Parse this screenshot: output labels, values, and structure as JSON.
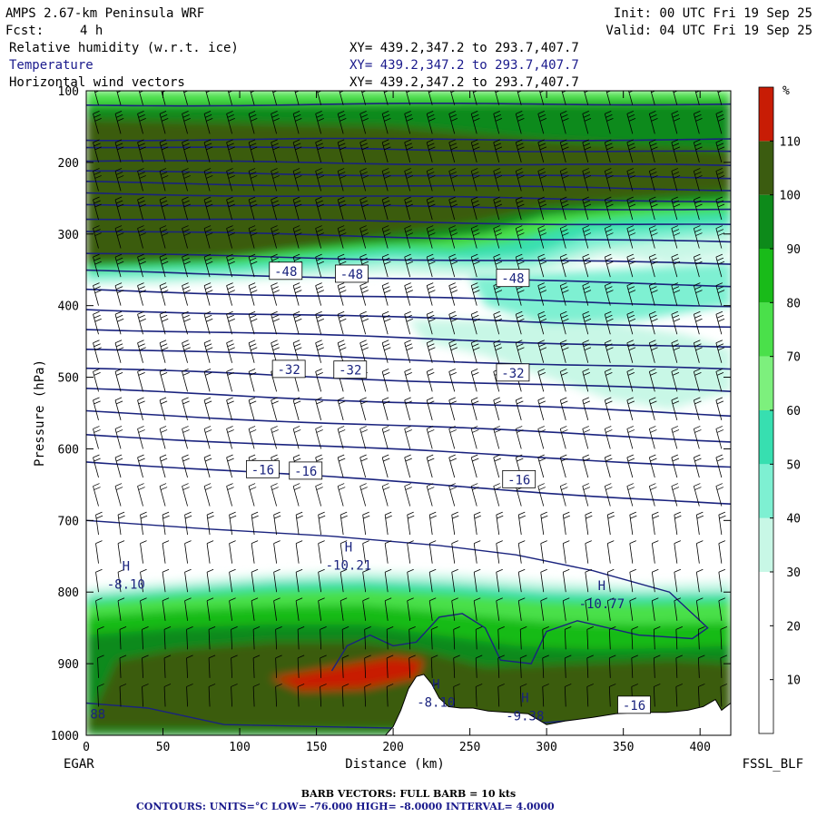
{
  "header": {
    "model": "AMPS 2.67-km Peninsula WRF",
    "init": "Init: 00 UTC Fri 19 Sep 25",
    "fcst_label": "Fcst:",
    "fcst_value": "4 h",
    "valid": "Valid: 04 UTC Fri 19 Sep 25",
    "fields": [
      {
        "name": "Relative humidity (w.r.t. ice)",
        "xy": "XY= 439.2,347.2 to 293.7,407.7"
      },
      {
        "name": "Temperature",
        "xy": "XY= 439.2,347.2 to 293.7,407.7"
      },
      {
        "name": "Horizontal wind vectors",
        "xy": "XY= 439.2,347.2 to 293.7,407.7"
      }
    ]
  },
  "footer": {
    "barb": "BARB VECTORS:  FULL BARB = 10 kts",
    "contours": "CONTOURS:  UNITS=°C  LOW= -76.000       HIGH= -8.0000      INTERVAL=    4.0000"
  },
  "colors": {
    "white": "#ffffff",
    "rh30": "#c8f7e6",
    "rh40": "#7ef0d2",
    "rh50": "#37dfb0",
    "rh60": "#7df07d",
    "rh70": "#4ae04a",
    "rh80": "#19bb19",
    "rh90": "#0d8a1a",
    "rh100": "#3b5c10",
    "rh110": "#c81c05",
    "contour": "#1a237e",
    "terrain": "#ffffff"
  },
  "chart_data": {
    "type": "cross-section",
    "xlabel": "Distance (km)",
    "ylabel": "Pressure (hPa)",
    "xlim": [
      0,
      420
    ],
    "ylim": [
      1000,
      100
    ],
    "xticks": [
      0,
      50,
      100,
      150,
      200,
      250,
      300,
      350,
      400
    ],
    "yticks": [
      100,
      200,
      300,
      400,
      500,
      600,
      700,
      800,
      900,
      1000
    ],
    "left_endpoint": "EGAR",
    "right_endpoint": "FSSL_BLF",
    "colorbar": {
      "unit": "%",
      "ticks": [
        10,
        20,
        30,
        40,
        50,
        60,
        70,
        80,
        90,
        100,
        110
      ],
      "levels": [
        0,
        10,
        20,
        30,
        40,
        50,
        60,
        70,
        80,
        90,
        100,
        110,
        120
      ],
      "colors": [
        "#ffffff",
        "#ffffff",
        "#ffffff",
        "#c8f7e6",
        "#7ef0d2",
        "#37dfb0",
        "#7df07d",
        "#4ae04a",
        "#19bb19",
        "#0d8a1a",
        "#3b5c10",
        "#c81c05"
      ]
    },
    "temperature_contours": {
      "units": "°C",
      "low": -76,
      "high": -8,
      "interval": 4,
      "isotherms": [
        {
          "p0": 120,
          "p1": 118
        },
        {
          "p0": 168,
          "p1": 168
        },
        {
          "p0": 178,
          "p1": 186
        },
        {
          "p0": 198,
          "p1": 205
        },
        {
          "p0": 213,
          "p1": 222
        },
        {
          "p0": 228,
          "p1": 238
        },
        {
          "p0": 243,
          "p1": 254
        },
        {
          "p0": 258,
          "p1": 266
        },
        {
          "p0": 278,
          "p1": 288
        },
        {
          "p0": 296,
          "p1": 312
        },
        {
          "p0": 328,
          "p1": 342
        },
        {
          "p0": 352,
          "p1": 372
        },
        {
          "p0": 378,
          "p1": 400
        },
        {
          "p0": 405,
          "p1": 430
        },
        {
          "p0": 432,
          "p1": 459
        },
        {
          "p0": 460,
          "p1": 490
        },
        {
          "p0": 488,
          "p1": 520
        },
        {
          "p0": 517,
          "p1": 553
        },
        {
          "p0": 548,
          "p1": 589
        },
        {
          "p0": 580,
          "p1": 625
        },
        {
          "p0": 617,
          "p1": 678
        }
      ],
      "labels": [
        {
          "text": "-48",
          "x": 130,
          "p": 352
        },
        {
          "text": "-48",
          "x": 173,
          "p": 356
        },
        {
          "text": "-48",
          "x": 278,
          "p": 362
        },
        {
          "text": "-32",
          "x": 132,
          "p": 489
        },
        {
          "text": "-32",
          "x": 172,
          "p": 490
        },
        {
          "text": "-32",
          "x": 278,
          "p": 494
        },
        {
          "text": "-16",
          "x": 115,
          "p": 629
        },
        {
          "text": "-16",
          "x": 143,
          "p": 631
        },
        {
          "text": "-16",
          "x": 282,
          "p": 643
        },
        {
          "text": "-16",
          "x": 357,
          "p": 958
        }
      ]
    },
    "highs": [
      {
        "label": "H",
        "value": "-8.10",
        "x": 20,
        "p": 770
      },
      {
        "label": "H",
        "value": "-10.21",
        "x": 165,
        "p": 743
      },
      {
        "label": "H",
        "value": "-10.77",
        "x": 330,
        "p": 797
      },
      {
        "label": "H",
        "value": "-8.10",
        "x": 222,
        "p": 935
      },
      {
        "label": "H",
        "value": "-9.38",
        "x": 280,
        "p": 954
      }
    ],
    "edge_labels": [
      {
        "text": "88",
        "x": 2,
        "p": 970
      }
    ],
    "terrain_profile": [
      [
        195,
        1000
      ],
      [
        200,
        988
      ],
      [
        205,
        965
      ],
      [
        210,
        935
      ],
      [
        215,
        918
      ],
      [
        220,
        915
      ],
      [
        225,
        928
      ],
      [
        230,
        948
      ],
      [
        236,
        960
      ],
      [
        244,
        962
      ],
      [
        252,
        962
      ],
      [
        262,
        966
      ],
      [
        275,
        968
      ],
      [
        288,
        970
      ],
      [
        300,
        985
      ],
      [
        312,
        980
      ],
      [
        330,
        975
      ],
      [
        345,
        970
      ],
      [
        360,
        968
      ],
      [
        378,
        968
      ],
      [
        392,
        965
      ],
      [
        402,
        960
      ],
      [
        410,
        950
      ],
      [
        414,
        965
      ],
      [
        420,
        955
      ]
    ]
  }
}
